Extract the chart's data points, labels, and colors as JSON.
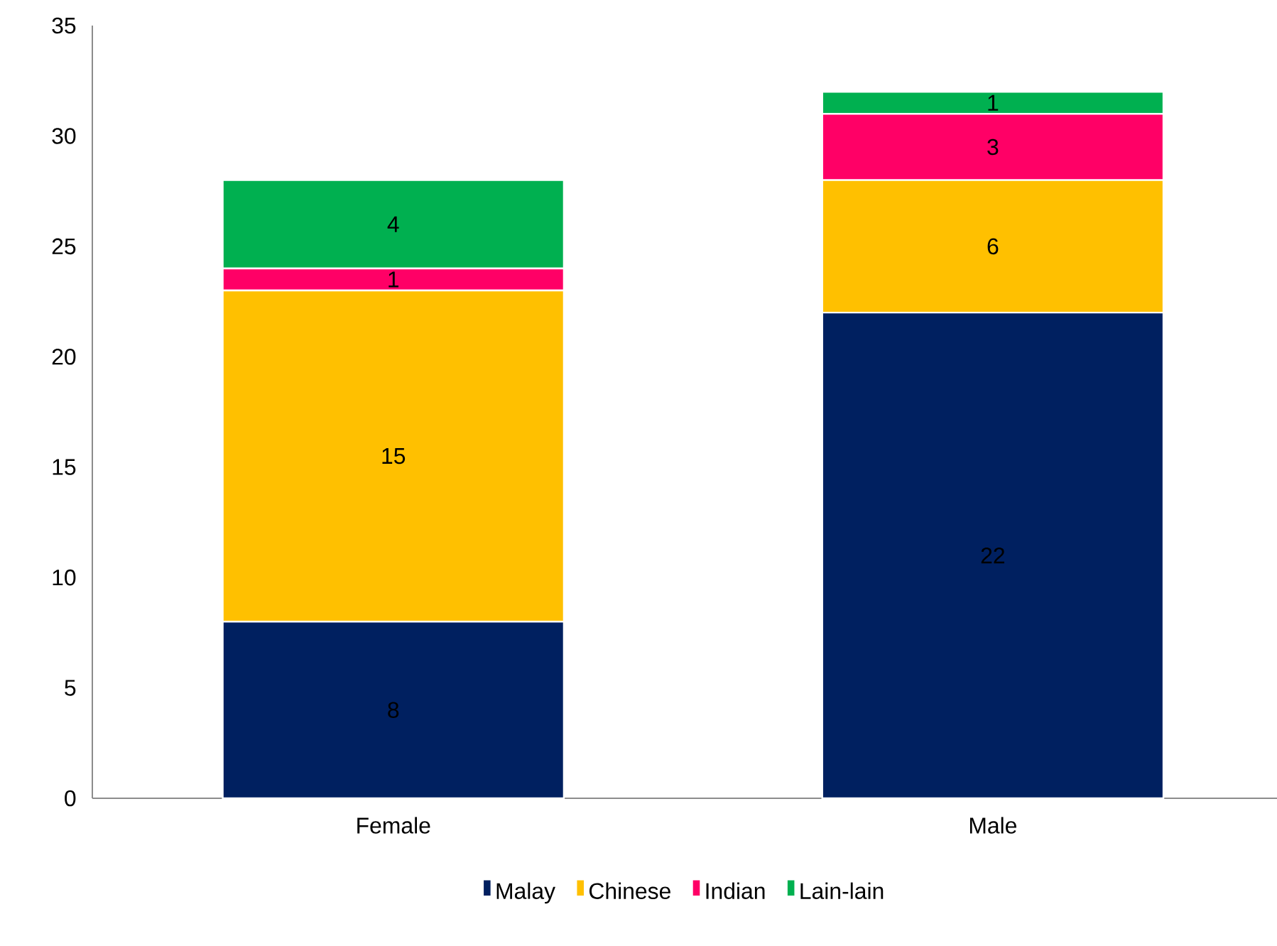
{
  "chart_data": {
    "type": "bar",
    "stacked": true,
    "categories": [
      "Female",
      "Male"
    ],
    "series": [
      {
        "name": "Malay",
        "color": "#002060",
        "values": [
          8,
          22
        ]
      },
      {
        "name": "Chinese",
        "color": "#ffc000",
        "values": [
          15,
          6
        ]
      },
      {
        "name": "Indian",
        "color": "#ff0066",
        "values": [
          1,
          3
        ]
      },
      {
        "name": "Lain-lain",
        "color": "#00b050",
        "values": [
          4,
          1
        ]
      }
    ],
    "ylim": [
      0,
      35
    ],
    "yticks": [
      0,
      5,
      10,
      15,
      20,
      25,
      30,
      35
    ],
    "grid": false,
    "legend": "bottom",
    "data_labels": true
  }
}
